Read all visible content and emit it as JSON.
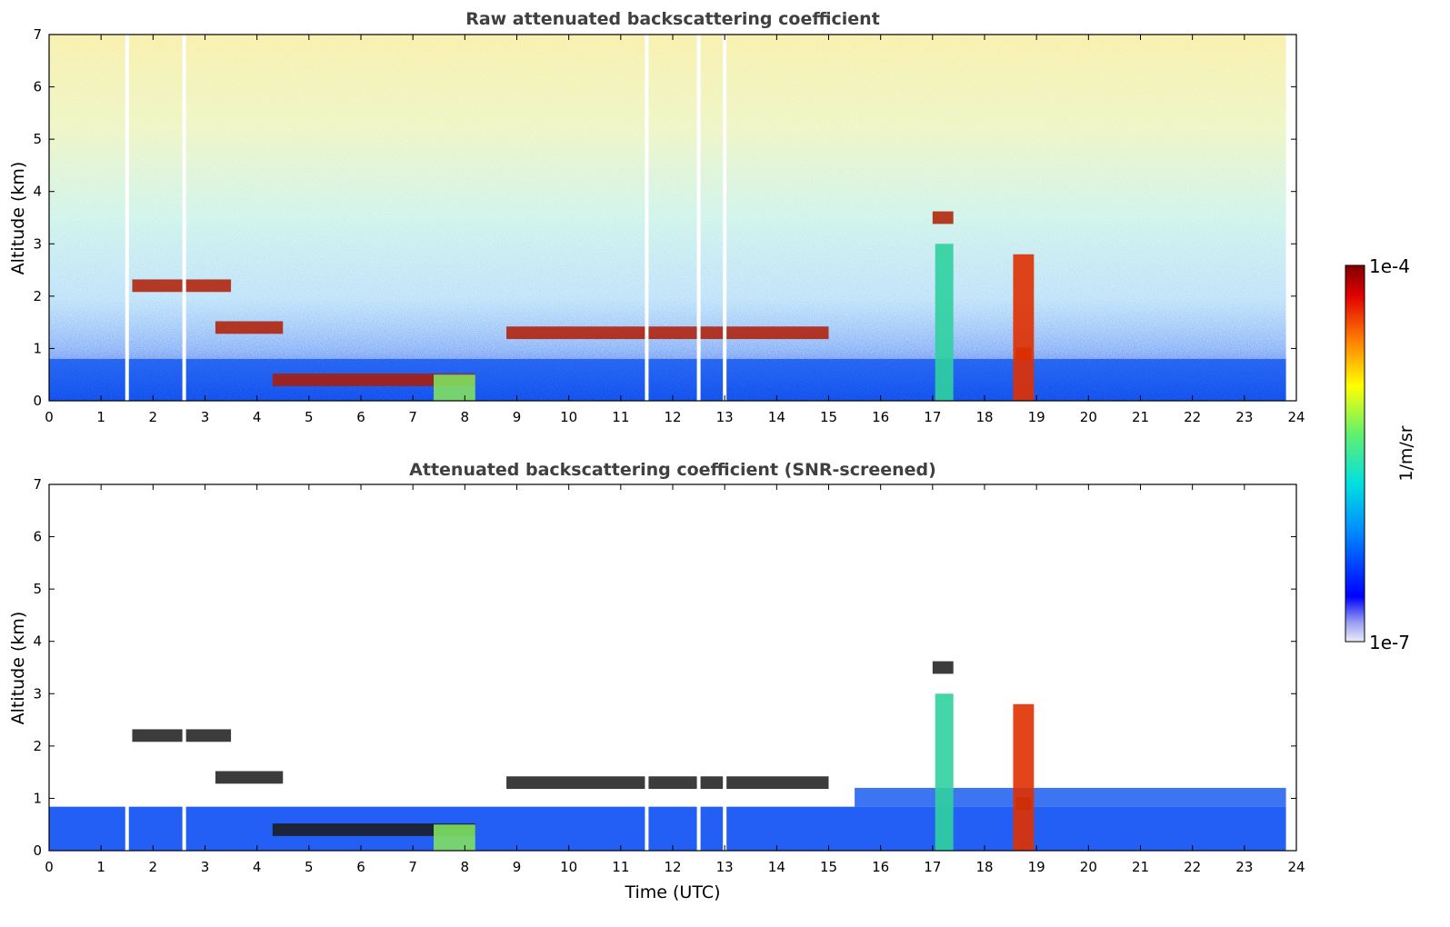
{
  "chart_data": [
    {
      "type": "heatmap",
      "title": "Raw attenuated backscattering coefficient",
      "xlabel": "",
      "ylabel": "Altitude (km)",
      "xlim": [
        0,
        24
      ],
      "ylim": [
        0,
        7
      ],
      "xticks": [
        "0",
        "1",
        "2",
        "3",
        "4",
        "5",
        "6",
        "7",
        "8",
        "9",
        "10",
        "11",
        "12",
        "13",
        "14",
        "15",
        "16",
        "17",
        "18",
        "19",
        "20",
        "21",
        "22",
        "23",
        "24"
      ],
      "yticks": [
        "0",
        "1",
        "2",
        "3",
        "4",
        "5",
        "6",
        "7"
      ],
      "data_end_time": 23.8,
      "features": {
        "boundary_layer_top_km": 0.8,
        "cloud_layers": [
          {
            "x_start": 1.6,
            "x_end": 3.5,
            "alt_km": 2.2
          },
          {
            "x_start": 3.2,
            "x_end": 4.5,
            "alt_km": 1.4
          },
          {
            "x_start": 4.3,
            "x_end": 8.2,
            "alt_km": 0.4
          },
          {
            "x_start": 8.8,
            "x_end": 15.0,
            "alt_km": 1.3
          },
          {
            "x_start": 17.0,
            "x_end": 17.4,
            "alt_km": 3.5
          },
          {
            "x_start": 18.6,
            "x_end": 18.9,
            "alt_km": 0.9
          }
        ],
        "rain_columns": [
          {
            "x_start": 7.4,
            "x_end": 8.2,
            "top_km": 0.5
          },
          {
            "x_start": 17.05,
            "x_end": 17.4,
            "top_km": 3.0
          },
          {
            "x_start": 18.55,
            "x_end": 18.95,
            "top_km": 2.8
          }
        ],
        "data_gaps": [
          1.5,
          2.6,
          11.5,
          12.5,
          13.0
        ]
      }
    },
    {
      "type": "heatmap",
      "title": "Attenuated backscattering coefficient (SNR-screened)",
      "xlabel": "Time (UTC)",
      "ylabel": "Altitude (km)",
      "xlim": [
        0,
        24
      ],
      "ylim": [
        0,
        7
      ],
      "xticks": [
        "0",
        "1",
        "2",
        "3",
        "4",
        "5",
        "6",
        "7",
        "8",
        "9",
        "10",
        "11",
        "12",
        "13",
        "14",
        "15",
        "16",
        "17",
        "18",
        "19",
        "20",
        "21",
        "22",
        "23",
        "24"
      ],
      "yticks": [
        "0",
        "1",
        "2",
        "3",
        "4",
        "5",
        "6",
        "7"
      ],
      "data_end_time": 23.8,
      "screened_top_km": 1.2
    }
  ],
  "colorbar": {
    "label": "1/m/sr",
    "max_label": "1e-4",
    "min_label": "1e-7",
    "scale": "log",
    "colormap": "jet"
  }
}
